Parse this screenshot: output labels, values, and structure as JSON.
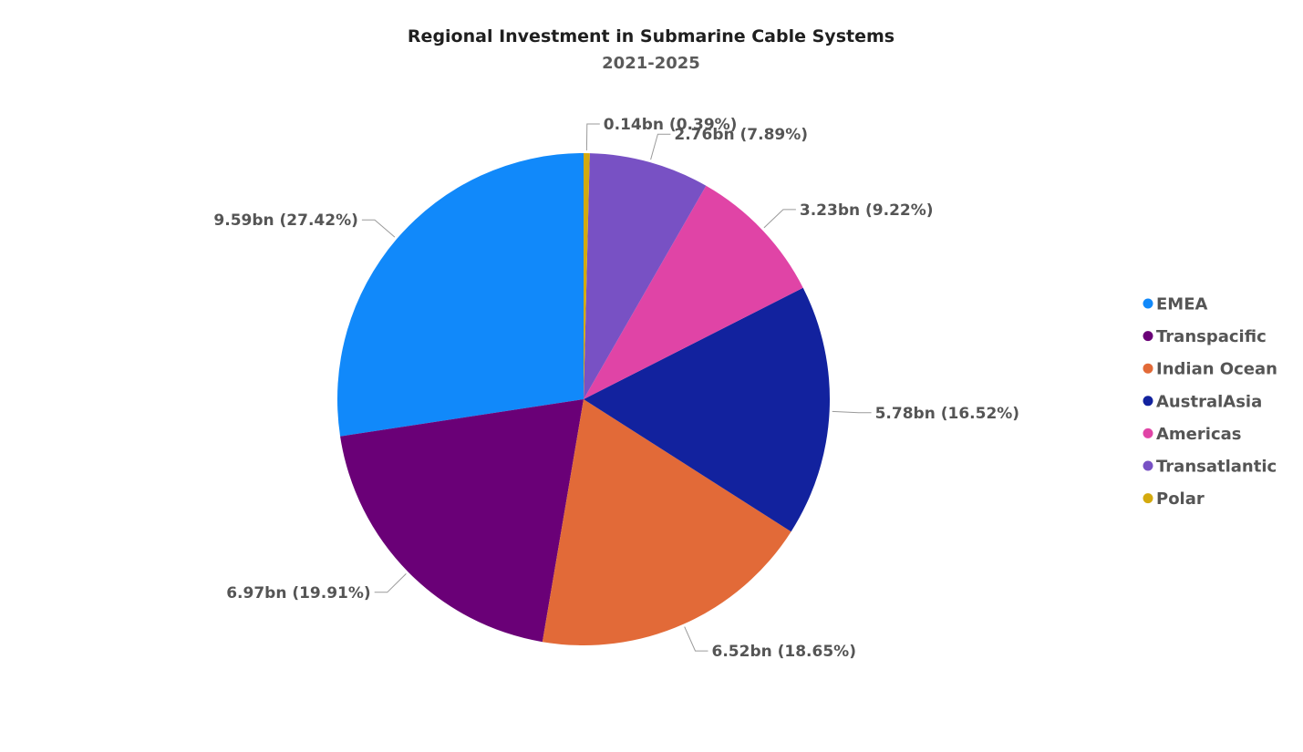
{
  "chart_data": {
    "type": "pie",
    "title": "Regional Investment in Submarine Cable Systems",
    "subtitle": "2021-2025",
    "unit": "bn",
    "start_angle_deg": 90,
    "direction": "counterclockwise",
    "legend_position": "right",
    "slices": [
      {
        "name": "EMEA",
        "value": 9.59,
        "percent": 27.42,
        "label": "9.59bn (27.42%)",
        "color": "#1189fa"
      },
      {
        "name": "Transpacific",
        "value": 6.97,
        "percent": 19.91,
        "label": "6.97bn (19.91%)",
        "color": "#6a0077"
      },
      {
        "name": "Indian Ocean",
        "value": 6.52,
        "percent": 18.65,
        "label": "6.52bn (18.65%)",
        "color": "#e26a38"
      },
      {
        "name": "AustralAsia",
        "value": 5.78,
        "percent": 16.52,
        "label": "5.78bn (16.52%)",
        "color": "#12229e"
      },
      {
        "name": "Americas",
        "value": 3.23,
        "percent": 9.22,
        "label": "3.23bn (9.22%)",
        "color": "#e044a6"
      },
      {
        "name": "Transatlantic",
        "value": 2.76,
        "percent": 7.89,
        "label": "2.76bn (7.89%)",
        "color": "#7851c4"
      },
      {
        "name": "Polar",
        "value": 0.14,
        "percent": 0.39,
        "label": "0.14bn (0.39%)",
        "color": "#d4aa0e"
      }
    ]
  }
}
